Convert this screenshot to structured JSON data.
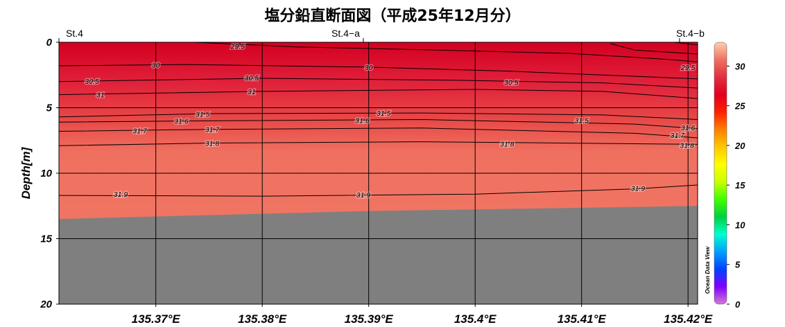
{
  "chart_data": {
    "type": "heatmap",
    "title": "塩分鉛直断面図（平成25年12月分）",
    "ylabel": "Depth[m]",
    "xlabel": "",
    "stations": [
      "St.4",
      "St.4−a",
      "St.4−b"
    ],
    "station_lon": [
      135.3609,
      135.3895,
      135.4192
    ],
    "xlim": [
      135.3609,
      135.4209
    ],
    "ylim": [
      0,
      20
    ],
    "y_inverted": true,
    "x_ticks": [
      135.37,
      135.38,
      135.39,
      135.4,
      135.41,
      135.42
    ],
    "x_tick_labels": [
      "135.37°E",
      "135.38°E",
      "135.39°E",
      "135.4°E",
      "135.41°E",
      "135.42°E"
    ],
    "y_ticks": [
      0,
      5,
      10,
      15,
      20
    ],
    "y_tick_labels": [
      "0",
      "5",
      "10",
      "15",
      "20"
    ],
    "colorbar": {
      "range": [
        0,
        33
      ],
      "ticks": [
        0,
        5,
        10,
        15,
        20,
        25,
        30
      ],
      "tick_labels": [
        "0",
        "5",
        "10",
        "15",
        "20",
        "25",
        "30"
      ],
      "colors": [
        "#d678d6",
        "#7f00ff",
        "#0040ff",
        "#00a0ff",
        "#00ffd0",
        "#00d040",
        "#40ff00",
        "#c8ff00",
        "#ffff00",
        "#ffc800",
        "#ff8000",
        "#ff2000",
        "#e00020",
        "#e03040",
        "#f07060",
        "#ffd0b0"
      ]
    },
    "seafloor_depth": [
      {
        "lon": 135.3609,
        "depth": 13.5
      },
      {
        "lon": 135.3895,
        "depth": 12.9
      },
      {
        "lon": 135.4209,
        "depth": 12.5
      }
    ],
    "contours": [
      {
        "level": 29.5,
        "points": [
          [
            135.3736,
            0.0
          ],
          [
            135.383,
            0.35
          ],
          [
            135.3964,
            0.6
          ],
          [
            135.409,
            0.85
          ],
          [
            135.418,
            1.3
          ],
          [
            135.4209,
            1.5
          ]
        ],
        "labels": [
          [
            135.3777,
            0.28
          ]
        ]
      },
      {
        "level": 29.5,
        "points": [
          [
            135.4127,
            0.1
          ],
          [
            135.415,
            0.6
          ],
          [
            135.4209,
            0.9
          ]
        ],
        "labels": [
          [
            135.42,
            1.9
          ]
        ]
      },
      {
        "level": 29.5,
        "points": [
          [
            135.4187,
            0.0
          ],
          [
            135.4209,
            0.2
          ]
        ],
        "labels": []
      },
      {
        "level": 30,
        "points": [
          [
            135.3609,
            1.8
          ],
          [
            135.373,
            1.7
          ],
          [
            135.39,
            1.9
          ],
          [
            135.403,
            2.2
          ],
          [
            135.415,
            2.6
          ],
          [
            135.4209,
            2.8
          ]
        ],
        "labels": [
          [
            135.37,
            1.72
          ],
          [
            135.39,
            1.9
          ]
        ]
      },
      {
        "level": 30.5,
        "points": [
          [
            135.3609,
            3.0
          ],
          [
            135.38,
            2.75
          ],
          [
            135.398,
            2.9
          ],
          [
            135.412,
            3.1
          ],
          [
            135.4209,
            3.5
          ]
        ],
        "labels": [
          [
            135.364,
            2.95
          ],
          [
            135.379,
            2.7
          ],
          [
            135.4034,
            3.05
          ]
        ]
      },
      {
        "level": 31,
        "points": [
          [
            135.3609,
            4.0
          ],
          [
            135.38,
            3.75
          ],
          [
            135.4,
            3.6
          ],
          [
            135.412,
            3.75
          ],
          [
            135.4209,
            4.3
          ]
        ],
        "labels": [
          [
            135.3648,
            4.0
          ],
          [
            135.379,
            3.75
          ]
        ]
      },
      {
        "level": 31.5,
        "points": [
          [
            135.3609,
            5.7
          ],
          [
            135.375,
            5.45
          ],
          [
            135.395,
            5.4
          ],
          [
            135.412,
            5.55
          ],
          [
            135.4209,
            5.9
          ]
        ],
        "labels": [
          [
            135.3744,
            5.47
          ],
          [
            135.3914,
            5.4
          ],
          [
            135.41,
            5.95
          ]
        ]
      },
      {
        "level": 31.6,
        "points": [
          [
            135.3609,
            6.1
          ],
          [
            135.375,
            6.0
          ],
          [
            135.395,
            5.9
          ],
          [
            135.415,
            6.25
          ],
          [
            135.4209,
            6.6
          ]
        ],
        "labels": [
          [
            135.3724,
            6.0
          ],
          [
            135.3894,
            5.95
          ],
          [
            135.42,
            6.52
          ]
        ]
      },
      {
        "level": 31.7,
        "points": [
          [
            135.3609,
            6.8
          ],
          [
            135.375,
            6.65
          ],
          [
            135.395,
            6.55
          ],
          [
            135.415,
            6.95
          ],
          [
            135.4209,
            7.3
          ]
        ],
        "labels": [
          [
            135.3685,
            6.75
          ],
          [
            135.3753,
            6.65
          ],
          [
            135.419,
            7.1
          ]
        ]
      },
      {
        "level": 31.8,
        "points": [
          [
            135.3609,
            7.9
          ],
          [
            135.375,
            7.7
          ],
          [
            135.395,
            7.6
          ],
          [
            135.415,
            7.75
          ],
          [
            135.4209,
            7.8
          ]
        ],
        "labels": [
          [
            135.3753,
            7.7
          ],
          [
            135.403,
            7.75
          ],
          [
            135.4199,
            7.85
          ]
        ]
      },
      {
        "level": 31.9,
        "points": [
          [
            135.3609,
            11.7
          ],
          [
            135.38,
            11.75
          ],
          [
            135.4,
            11.6
          ],
          [
            135.415,
            11.2
          ],
          [
            135.4209,
            10.9
          ]
        ],
        "labels": [
          [
            135.3667,
            11.6
          ],
          [
            135.3895,
            11.65
          ],
          [
            135.4153,
            11.15
          ]
        ]
      }
    ]
  }
}
